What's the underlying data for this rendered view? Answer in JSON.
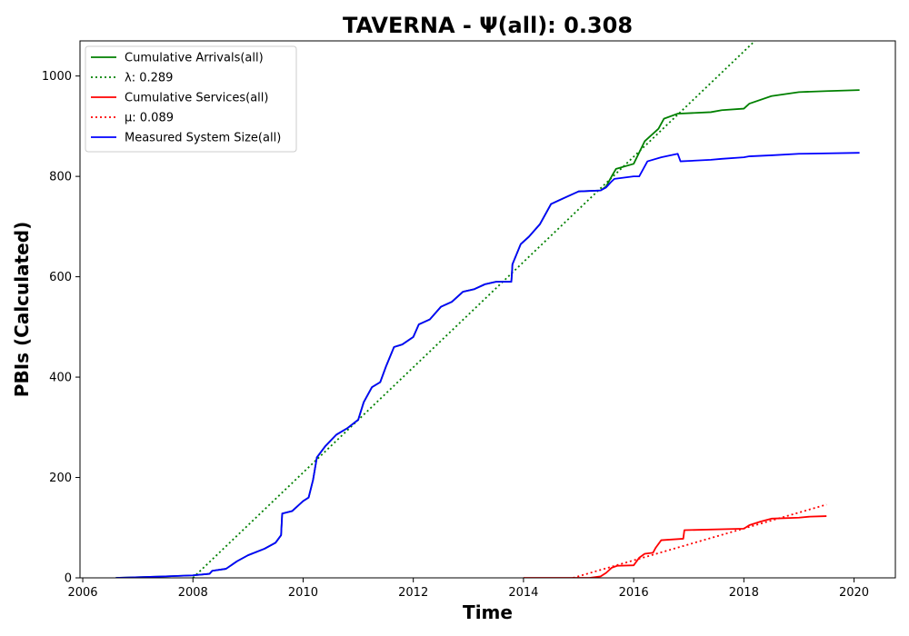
{
  "chart_data": {
    "type": "line",
    "title": "TAVERNA -  Ψ(all): 0.308",
    "xlabel": "Time",
    "ylabel": "PBIs (Calculated)",
    "xlim": [
      2005.95,
      2020.75
    ],
    "ylim": [
      0,
      1070
    ],
    "x_ticks": [
      2006,
      2008,
      2010,
      2012,
      2014,
      2016,
      2018,
      2020
    ],
    "y_ticks": [
      0,
      200,
      400,
      600,
      800,
      1000
    ],
    "grid": false,
    "legend_position": "upper-left",
    "series": [
      {
        "name": "Cumulative Arrivals(all)",
        "color": "#008000",
        "style": "solid",
        "points": [
          [
            2006.6,
            0
          ],
          [
            2007.5,
            3
          ],
          [
            2008.0,
            5
          ],
          [
            2008.3,
            8
          ],
          [
            2008.35,
            14
          ],
          [
            2008.6,
            18
          ],
          [
            2008.8,
            33
          ],
          [
            2009.0,
            45
          ],
          [
            2009.3,
            58
          ],
          [
            2009.5,
            70
          ],
          [
            2009.6,
            85
          ],
          [
            2009.62,
            128
          ],
          [
            2009.8,
            133
          ],
          [
            2010.0,
            153
          ],
          [
            2010.1,
            160
          ],
          [
            2010.18,
            195
          ],
          [
            2010.25,
            240
          ],
          [
            2010.4,
            262
          ],
          [
            2010.6,
            285
          ],
          [
            2010.8,
            298
          ],
          [
            2011.0,
            315
          ],
          [
            2011.1,
            350
          ],
          [
            2011.25,
            380
          ],
          [
            2011.4,
            390
          ],
          [
            2011.5,
            420
          ],
          [
            2011.65,
            460
          ],
          [
            2011.8,
            465
          ],
          [
            2012.0,
            480
          ],
          [
            2012.1,
            505
          ],
          [
            2012.3,
            515
          ],
          [
            2012.5,
            540
          ],
          [
            2012.7,
            550
          ],
          [
            2012.9,
            570
          ],
          [
            2013.1,
            575
          ],
          [
            2013.3,
            585
          ],
          [
            2013.5,
            590
          ],
          [
            2013.78,
            590
          ],
          [
            2013.8,
            625
          ],
          [
            2013.95,
            665
          ],
          [
            2014.1,
            680
          ],
          [
            2014.3,
            705
          ],
          [
            2014.5,
            745
          ],
          [
            2014.7,
            755
          ],
          [
            2015.0,
            770
          ],
          [
            2015.4,
            772
          ],
          [
            2015.5,
            780
          ],
          [
            2015.6,
            800
          ],
          [
            2015.68,
            815
          ],
          [
            2016.0,
            825
          ],
          [
            2016.2,
            870
          ],
          [
            2016.45,
            895
          ],
          [
            2016.55,
            915
          ],
          [
            2016.8,
            925
          ],
          [
            2017.4,
            928
          ],
          [
            2017.6,
            932
          ],
          [
            2018.0,
            935
          ],
          [
            2018.1,
            945
          ],
          [
            2018.5,
            960
          ],
          [
            2019.0,
            968
          ],
          [
            2019.5,
            970
          ],
          [
            2020.1,
            972
          ]
        ]
      },
      {
        "name": "λ: 0.289",
        "color": "#008000",
        "style": "dotted",
        "points": [
          [
            2008.0,
            0
          ],
          [
            2018.2,
            1070
          ]
        ]
      },
      {
        "name": "Cumulative Services(all)",
        "color": "#ff0000",
        "style": "solid",
        "points": [
          [
            2014.0,
            0
          ],
          [
            2015.2,
            0
          ],
          [
            2015.4,
            3
          ],
          [
            2015.5,
            10
          ],
          [
            2015.6,
            20
          ],
          [
            2015.7,
            24
          ],
          [
            2016.0,
            25
          ],
          [
            2016.1,
            40
          ],
          [
            2016.2,
            48
          ],
          [
            2016.35,
            50
          ],
          [
            2016.4,
            60
          ],
          [
            2016.5,
            75
          ],
          [
            2016.9,
            78
          ],
          [
            2016.92,
            95
          ],
          [
            2018.0,
            98
          ],
          [
            2018.1,
            105
          ],
          [
            2018.3,
            112
          ],
          [
            2018.5,
            118
          ],
          [
            2019.0,
            120
          ],
          [
            2019.2,
            122
          ],
          [
            2019.5,
            123
          ]
        ]
      },
      {
        "name": "μ: 0.089",
        "color": "#ff0000",
        "style": "dotted",
        "points": [
          [
            2014.9,
            0
          ],
          [
            2019.5,
            146
          ]
        ]
      },
      {
        "name": "Measured System Size(all)",
        "color": "#0000ff",
        "style": "solid",
        "points": [
          [
            2006.6,
            0
          ],
          [
            2007.5,
            3
          ],
          [
            2008.0,
            5
          ],
          [
            2008.3,
            8
          ],
          [
            2008.35,
            14
          ],
          [
            2008.6,
            18
          ],
          [
            2008.8,
            33
          ],
          [
            2009.0,
            45
          ],
          [
            2009.3,
            58
          ],
          [
            2009.5,
            70
          ],
          [
            2009.6,
            85
          ],
          [
            2009.62,
            128
          ],
          [
            2009.8,
            133
          ],
          [
            2010.0,
            153
          ],
          [
            2010.1,
            160
          ],
          [
            2010.18,
            195
          ],
          [
            2010.25,
            240
          ],
          [
            2010.4,
            262
          ],
          [
            2010.6,
            285
          ],
          [
            2010.8,
            298
          ],
          [
            2011.0,
            315
          ],
          [
            2011.1,
            350
          ],
          [
            2011.25,
            380
          ],
          [
            2011.4,
            390
          ],
          [
            2011.5,
            420
          ],
          [
            2011.65,
            460
          ],
          [
            2011.8,
            465
          ],
          [
            2012.0,
            480
          ],
          [
            2012.1,
            505
          ],
          [
            2012.3,
            515
          ],
          [
            2012.5,
            540
          ],
          [
            2012.7,
            550
          ],
          [
            2012.9,
            570
          ],
          [
            2013.1,
            575
          ],
          [
            2013.3,
            585
          ],
          [
            2013.5,
            590
          ],
          [
            2013.78,
            590
          ],
          [
            2013.8,
            625
          ],
          [
            2013.95,
            665
          ],
          [
            2014.1,
            680
          ],
          [
            2014.3,
            705
          ],
          [
            2014.5,
            745
          ],
          [
            2014.7,
            755
          ],
          [
            2015.0,
            770
          ],
          [
            2015.4,
            772
          ],
          [
            2015.5,
            778
          ],
          [
            2015.6,
            790
          ],
          [
            2015.65,
            795
          ],
          [
            2016.0,
            800
          ],
          [
            2016.1,
            800
          ],
          [
            2016.25,
            830
          ],
          [
            2016.5,
            838
          ],
          [
            2016.8,
            845
          ],
          [
            2016.85,
            830
          ],
          [
            2017.4,
            833
          ],
          [
            2017.6,
            835
          ],
          [
            2018.0,
            838
          ],
          [
            2018.1,
            840
          ],
          [
            2018.5,
            842
          ],
          [
            2019.0,
            845
          ],
          [
            2020.1,
            847
          ]
        ]
      }
    ]
  }
}
